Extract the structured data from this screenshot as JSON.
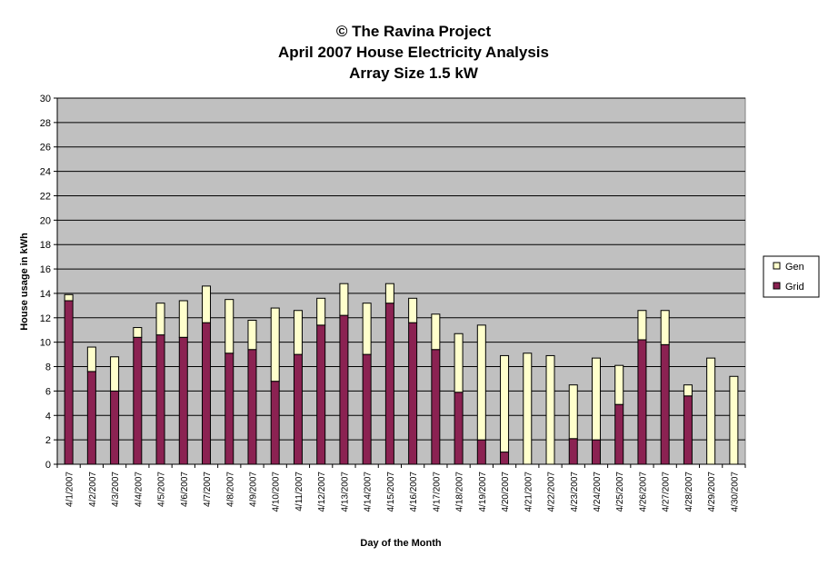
{
  "chart_data": {
    "type": "bar",
    "stacked": true,
    "title_lines": [
      "© The Ravina Project",
      "April 2007 House Electricity Analysis",
      "Array Size 1.5 kW"
    ],
    "xlabel": "Day of the Month",
    "ylabel": "House usage in kWh",
    "ylim": [
      0,
      30
    ],
    "yticks": [
      0,
      2,
      4,
      6,
      8,
      10,
      12,
      14,
      16,
      18,
      20,
      22,
      24,
      26,
      28,
      30
    ],
    "grid": true,
    "legend_position": "right",
    "categories": [
      "4/1/2007",
      "4/2/2007",
      "4/3/2007",
      "4/4/2007",
      "4/5/2007",
      "4/6/2007",
      "4/7/2007",
      "4/8/2007",
      "4/9/2007",
      "4/10/2007",
      "4/11/2007",
      "4/12/2007",
      "4/13/2007",
      "4/14/2007",
      "4/15/2007",
      "4/16/2007",
      "4/17/2007",
      "4/18/2007",
      "4/19/2007",
      "4/20/2007",
      "4/21/2007",
      "4/22/2007",
      "4/23/2007",
      "4/24/2007",
      "4/25/2007",
      "4/26/2007",
      "4/27/2007",
      "4/28/2007",
      "4/29/2007",
      "4/30/2007"
    ],
    "series": [
      {
        "name": "Grid",
        "color": "#8B2252",
        "values": [
          13.4,
          7.6,
          6.0,
          10.4,
          10.6,
          10.4,
          11.6,
          9.1,
          9.4,
          6.8,
          9.0,
          11.4,
          12.2,
          9.0,
          13.2,
          11.6,
          9.4,
          5.9,
          2.0,
          1.0,
          0.0,
          0.0,
          2.1,
          2.0,
          4.9,
          10.2,
          9.8,
          5.6,
          0.0,
          0.0
        ]
      },
      {
        "name": "Gen",
        "color": "#FFFFCC",
        "values": [
          0.5,
          2.0,
          2.8,
          0.8,
          2.6,
          3.0,
          3.0,
          4.4,
          2.4,
          6.0,
          3.6,
          2.2,
          2.6,
          4.2,
          1.6,
          2.0,
          2.9,
          4.8,
          9.4,
          7.9,
          9.1,
          8.9,
          4.4,
          6.7,
          3.2,
          2.4,
          2.8,
          0.9,
          8.7,
          7.2
        ]
      }
    ]
  }
}
